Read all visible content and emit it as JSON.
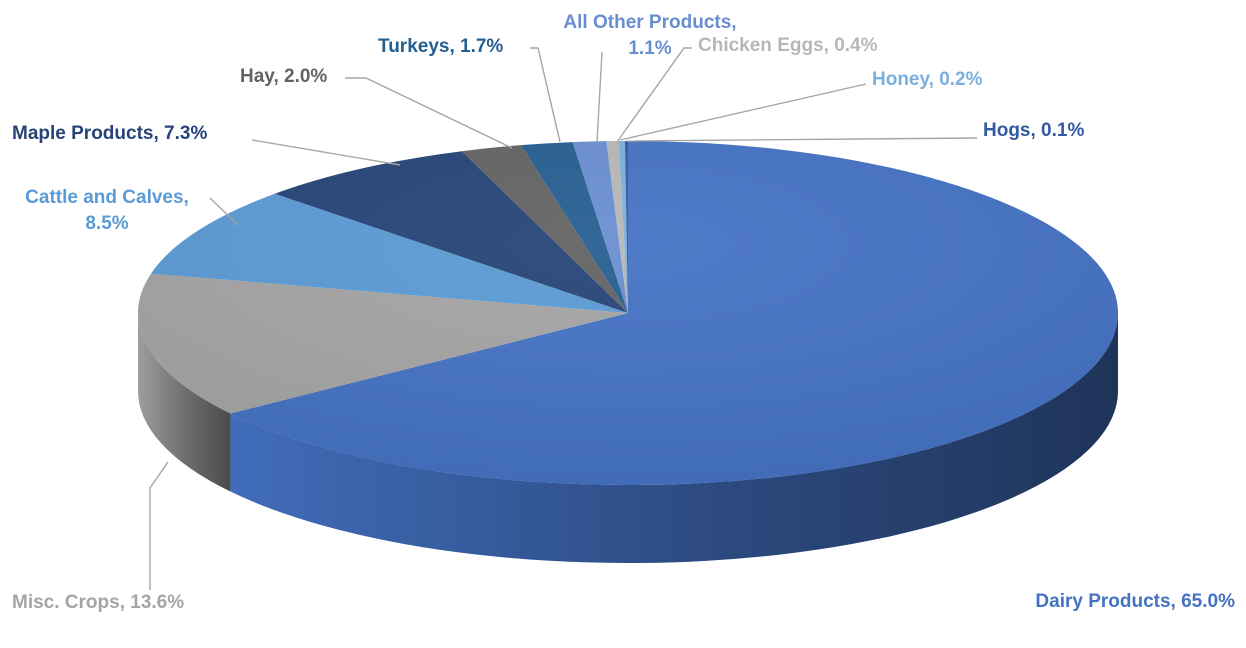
{
  "chart_data": {
    "type": "pie",
    "title": "",
    "categories": [
      "Dairy Products",
      "Misc. Crops",
      "Cattle and Calves",
      "Maple Products",
      "Hay",
      "Turkeys",
      "All Other Products",
      "Chicken Eggs",
      "Honey",
      "Hogs"
    ],
    "values": [
      65.0,
      13.6,
      8.5,
      7.3,
      2.0,
      1.7,
      1.1,
      0.4,
      0.2,
      0.1
    ],
    "unit": "%",
    "style": "3d",
    "legend": "none",
    "slices": [
      {
        "name": "Dairy Products",
        "value": 65.0,
        "label_lines": [
          "Dairy Products, 65.0%"
        ],
        "color": "#4472C4",
        "label_color": "#4472C4"
      },
      {
        "name": "Misc. Crops",
        "value": 13.6,
        "label_lines": [
          "Misc. Crops, 13.6%"
        ],
        "color": "#A5A5A5",
        "label_color": "#A5A5A5"
      },
      {
        "name": "Cattle and Calves",
        "value": 8.5,
        "label_lines": [
          "Cattle and Calves,",
          "8.5%"
        ],
        "color": "#5B9BD5",
        "label_color": "#5B9BD5"
      },
      {
        "name": "Maple Products",
        "value": 7.3,
        "label_lines": [
          "Maple Products, 7.3%"
        ],
        "color": "#264478",
        "label_color": "#264478"
      },
      {
        "name": "Hay",
        "value": 2.0,
        "label_lines": [
          "Hay, 2.0%"
        ],
        "color": "#636363",
        "label_color": "#636363"
      },
      {
        "name": "Turkeys",
        "value": 1.7,
        "label_lines": [
          "Turkeys, 1.7%"
        ],
        "color": "#255E91",
        "label_color": "#255E91"
      },
      {
        "name": "All Other Products",
        "value": 1.1,
        "label_lines": [
          "All Other Products,",
          "1.1%"
        ],
        "color": "#698ED0",
        "label_color": "#698ED0"
      },
      {
        "name": "Chicken Eggs",
        "value": 0.4,
        "label_lines": [
          "Chicken Eggs, 0.4%"
        ],
        "color": "#B7B7B7",
        "label_color": "#B7B7B7"
      },
      {
        "name": "Honey",
        "value": 0.2,
        "label_lines": [
          "Honey, 0.2%"
        ],
        "color": "#7CAFDD",
        "label_color": "#7CAFDD"
      },
      {
        "name": "Hogs",
        "value": 0.1,
        "label_lines": [
          "Hogs, 0.1%"
        ],
        "color": "#335AA1",
        "label_color": "#335AA1"
      }
    ]
  }
}
